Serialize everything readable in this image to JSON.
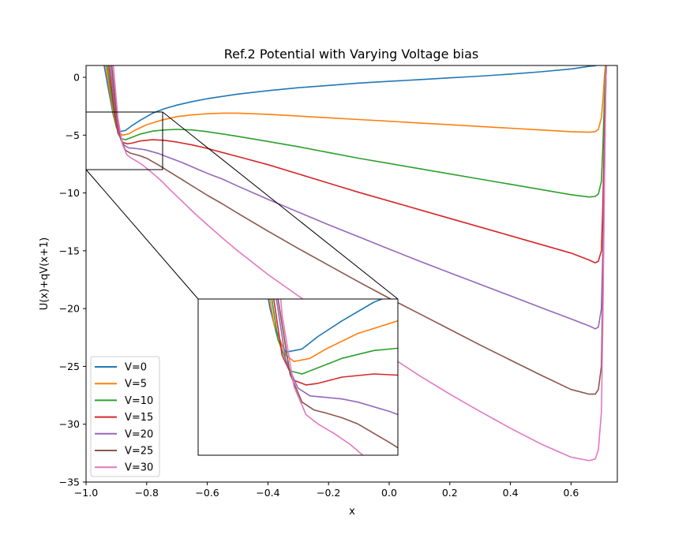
{
  "chart_data": {
    "type": "line",
    "title": "Ref.2 Potential with Varying Voltage bias",
    "xlabel": "x",
    "ylabel": "U(x)+qV(x+1)",
    "xlim": [
      -1.0,
      0.75
    ],
    "ylim": [
      -35,
      1.0
    ],
    "xticks": [
      "−1.0",
      "−0.8",
      "−0.6",
      "−0.4",
      "−0.2",
      "0.0",
      "0.2",
      "0.4",
      "0.6"
    ],
    "yticks": [
      "0",
      "−5",
      "−10",
      "−15",
      "−20",
      "−25",
      "−30",
      "−35"
    ],
    "legend_position": "lower-left",
    "grid": false,
    "series": [
      {
        "name": "V=0",
        "color": "#1f77b4",
        "x": [
          -0.94,
          -0.925,
          -0.91,
          -0.9,
          -0.89,
          -0.87,
          -0.85,
          -0.82,
          -0.78,
          -0.74,
          -0.7,
          -0.65,
          -0.6,
          -0.5,
          -0.4,
          -0.3,
          -0.2,
          -0.1,
          0.0,
          0.1,
          0.2,
          0.3,
          0.4,
          0.5,
          0.6,
          0.66,
          0.68,
          0.7,
          0.705,
          0.71,
          0.715,
          0.72
        ],
        "y": [
          1.0,
          -1.2,
          -3.3,
          -4.3,
          -4.7,
          -4.6,
          -4.2,
          -3.7,
          -3.1,
          -2.7,
          -2.4,
          -2.1,
          -1.85,
          -1.45,
          -1.15,
          -0.9,
          -0.7,
          -0.5,
          -0.35,
          -0.2,
          -0.05,
          0.1,
          0.28,
          0.48,
          0.72,
          0.95,
          1.0,
          1.2,
          1.5,
          2.0,
          2.5,
          3.0
        ]
      },
      {
        "name": "V=5",
        "color": "#ff7f0e",
        "x": [
          -0.935,
          -0.92,
          -0.905,
          -0.89,
          -0.88,
          -0.86,
          -0.84,
          -0.8,
          -0.75,
          -0.7,
          -0.65,
          -0.6,
          -0.55,
          -0.5,
          -0.4,
          -0.3,
          -0.2,
          -0.1,
          0.0,
          0.1,
          0.2,
          0.3,
          0.4,
          0.5,
          0.6,
          0.66,
          0.68,
          0.69,
          0.7,
          0.705,
          0.71,
          0.715,
          0.72
        ],
        "y": [
          1.0,
          -1.5,
          -3.8,
          -4.8,
          -5.0,
          -4.9,
          -4.6,
          -4.1,
          -3.7,
          -3.4,
          -3.25,
          -3.15,
          -3.1,
          -3.1,
          -3.2,
          -3.35,
          -3.5,
          -3.65,
          -3.8,
          -3.95,
          -4.1,
          -4.25,
          -4.4,
          -4.55,
          -4.7,
          -4.75,
          -4.7,
          -4.5,
          -3.5,
          -2.0,
          0.0,
          1.5,
          3.0
        ]
      },
      {
        "name": "V=10",
        "color": "#2ca02c",
        "x": [
          -0.93,
          -0.915,
          -0.9,
          -0.885,
          -0.87,
          -0.85,
          -0.82,
          -0.78,
          -0.74,
          -0.7,
          -0.65,
          -0.6,
          -0.55,
          -0.5,
          -0.4,
          -0.3,
          -0.2,
          -0.1,
          0.0,
          0.1,
          0.2,
          0.3,
          0.4,
          0.5,
          0.6,
          0.66,
          0.68,
          0.69,
          0.7,
          0.705,
          0.71,
          0.715,
          0.72
        ],
        "y": [
          1.0,
          -1.8,
          -4.3,
          -5.3,
          -5.4,
          -5.2,
          -4.9,
          -4.65,
          -4.55,
          -4.5,
          -4.55,
          -4.7,
          -4.9,
          -5.1,
          -5.55,
          -6.0,
          -6.5,
          -7.0,
          -7.45,
          -7.9,
          -8.35,
          -8.8,
          -9.25,
          -9.7,
          -10.15,
          -10.35,
          -10.3,
          -10.1,
          -9.0,
          -6.0,
          -2.0,
          1.0,
          3.0
        ]
      },
      {
        "name": "V=15",
        "color": "#d62728",
        "x": [
          -0.925,
          -0.91,
          -0.895,
          -0.88,
          -0.865,
          -0.85,
          -0.82,
          -0.78,
          -0.74,
          -0.7,
          -0.65,
          -0.6,
          -0.55,
          -0.5,
          -0.4,
          -0.3,
          -0.2,
          -0.1,
          0.0,
          0.1,
          0.2,
          0.3,
          0.4,
          0.5,
          0.6,
          0.66,
          0.68,
          0.69,
          0.7,
          0.705,
          0.71,
          0.715,
          0.72
        ],
        "y": [
          1.0,
          -2.2,
          -4.8,
          -5.6,
          -5.75,
          -5.7,
          -5.5,
          -5.4,
          -5.45,
          -5.6,
          -5.85,
          -6.15,
          -6.5,
          -6.85,
          -7.55,
          -8.35,
          -9.15,
          -9.95,
          -10.7,
          -11.45,
          -12.2,
          -12.95,
          -13.7,
          -14.45,
          -15.2,
          -15.8,
          -16.05,
          -15.9,
          -15.0,
          -11.0,
          -5.0,
          0.0,
          3.0
        ]
      },
      {
        "name": "V=20",
        "color": "#9467bd",
        "x": [
          -0.92,
          -0.905,
          -0.89,
          -0.875,
          -0.86,
          -0.84,
          -0.82,
          -0.8,
          -0.76,
          -0.72,
          -0.68,
          -0.64,
          -0.6,
          -0.55,
          -0.5,
          -0.4,
          -0.3,
          -0.2,
          -0.1,
          0.0,
          0.1,
          0.2,
          0.3,
          0.4,
          0.5,
          0.6,
          0.66,
          0.68,
          0.69,
          0.7,
          0.705,
          0.71,
          0.715,
          0.72
        ],
        "y": [
          1.0,
          -2.5,
          -5.0,
          -5.85,
          -6.1,
          -6.15,
          -6.2,
          -6.3,
          -6.6,
          -7.0,
          -7.4,
          -7.85,
          -8.3,
          -8.8,
          -9.4,
          -10.55,
          -11.65,
          -12.75,
          -13.8,
          -14.85,
          -15.9,
          -16.9,
          -17.9,
          -18.9,
          -19.9,
          -20.9,
          -21.5,
          -21.75,
          -21.6,
          -20.0,
          -15.0,
          -7.0,
          0.0,
          3.0
        ]
      },
      {
        "name": "V=25",
        "color": "#8c564b",
        "x": [
          -0.915,
          -0.9,
          -0.885,
          -0.87,
          -0.855,
          -0.84,
          -0.82,
          -0.8,
          -0.76,
          -0.72,
          -0.68,
          -0.64,
          -0.6,
          -0.55,
          -0.5,
          -0.4,
          -0.3,
          -0.2,
          -0.1,
          0.0,
          0.1,
          0.2,
          0.3,
          0.4,
          0.5,
          0.6,
          0.66,
          0.68,
          0.69,
          0.7,
          0.705,
          0.71,
          0.715,
          0.72
        ],
        "y": [
          1.0,
          -3.0,
          -5.4,
          -6.3,
          -6.55,
          -6.65,
          -6.8,
          -7.0,
          -7.6,
          -8.25,
          -8.9,
          -9.55,
          -10.2,
          -10.95,
          -11.75,
          -13.3,
          -14.8,
          -16.25,
          -17.7,
          -19.1,
          -20.45,
          -21.8,
          -23.15,
          -24.45,
          -25.75,
          -27.0,
          -27.4,
          -27.4,
          -27.0,
          -25.0,
          -18.0,
          -8.0,
          0.0,
          3.0
        ]
      },
      {
        "name": "V=30",
        "color": "#e377c2",
        "x": [
          -0.91,
          -0.895,
          -0.88,
          -0.865,
          -0.85,
          -0.83,
          -0.81,
          -0.78,
          -0.75,
          -0.72,
          -0.68,
          -0.64,
          -0.6,
          -0.55,
          -0.5,
          -0.4,
          -0.3,
          -0.2,
          -0.1,
          0.0,
          0.1,
          0.2,
          0.3,
          0.4,
          0.5,
          0.6,
          0.66,
          0.68,
          0.69,
          0.7,
          0.705,
          0.71,
          0.715,
          0.72
        ],
        "y": [
          1.0,
          -3.5,
          -5.8,
          -6.7,
          -7.0,
          -7.3,
          -7.65,
          -8.3,
          -9.0,
          -9.8,
          -10.8,
          -11.8,
          -12.75,
          -13.9,
          -15.0,
          -17.05,
          -18.9,
          -20.7,
          -22.4,
          -24.1,
          -25.8,
          -27.4,
          -28.9,
          -30.35,
          -31.7,
          -32.85,
          -33.15,
          -33.0,
          -32.2,
          -29.0,
          -21.0,
          -10.0,
          0.0,
          3.0
        ]
      }
    ],
    "inset": {
      "xlim": [
        -1.0,
        -0.75
      ],
      "ylim": [
        -8,
        -3
      ],
      "xticks": [],
      "yticks": []
    }
  }
}
